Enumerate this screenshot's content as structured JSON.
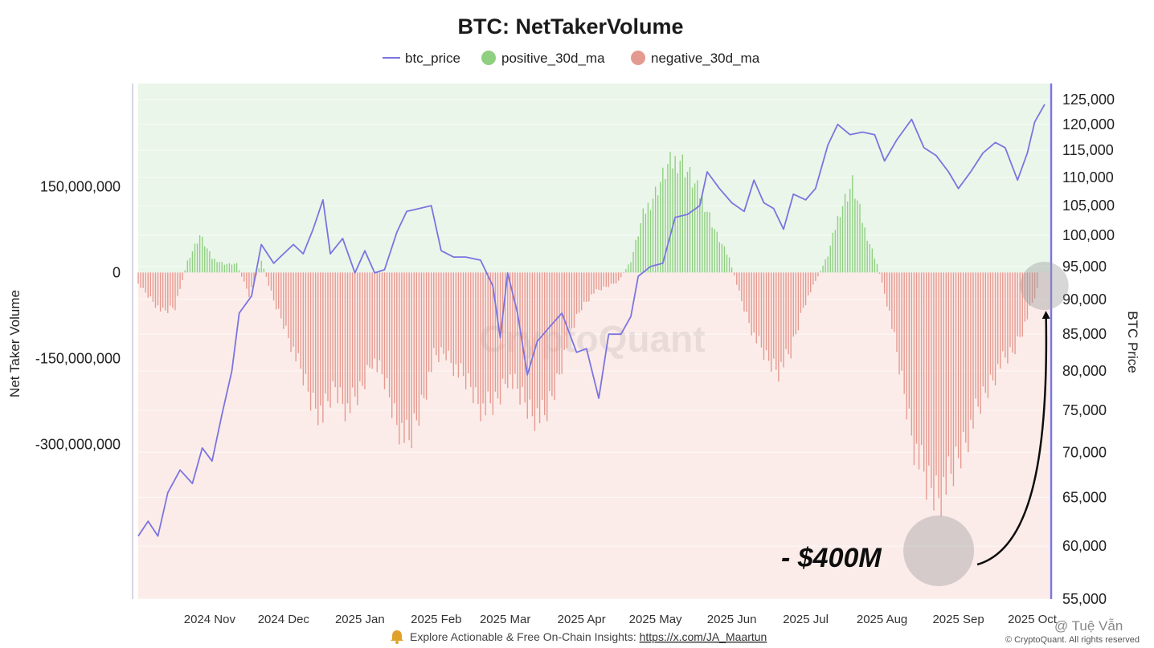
{
  "colors": {
    "price_line": "#7b74e0",
    "positive": "#8fcf80",
    "negative": "#e59a90",
    "positive_bg": "#eaf6ea",
    "negative_bg": "#fbece9"
  },
  "footer": {
    "icon": "bell-icon",
    "text": "Explore Actionable & Free On-Chain Insights: ",
    "link": "https://x.com/JA_Maartun"
  },
  "credit": "© CryptoQuant. All rights reserved",
  "handle": "@ Tuệ Vẫn",
  "watermark": "CryptoQuant",
  "chart_data": {
    "type": "bar",
    "title": "BTC: NetTakerVolume",
    "ylabel": "Net Taker Volume",
    "y2label": "BTC Price",
    "legend": [
      "btc_price",
      "positive_30d_ma",
      "negative_30d_ma"
    ],
    "legend_placement": "top-center",
    "ylim": [
      -570000000,
      330000000
    ],
    "y2lim": [
      55000,
      125000
    ],
    "y2_scale": "log",
    "y_ticks": [
      {
        "v": 150000000,
        "label": "150,000,000"
      },
      {
        "v": 0,
        "label": "0"
      },
      {
        "v": -150000000,
        "label": "-150,000,000"
      },
      {
        "v": -300000000,
        "label": "-300,000,000"
      }
    ],
    "y2_ticks": [
      {
        "v": 125000,
        "label": "125,000"
      },
      {
        "v": 120000,
        "label": "120,000"
      },
      {
        "v": 115000,
        "label": "115,000"
      },
      {
        "v": 110000,
        "label": "110,000"
      },
      {
        "v": 105000,
        "label": "105,000"
      },
      {
        "v": 100000,
        "label": "100,000"
      },
      {
        "v": 95000,
        "label": "95,000"
      },
      {
        "v": 90000,
        "label": "90,000"
      },
      {
        "v": 85000,
        "label": "85,000"
      },
      {
        "v": 80000,
        "label": "80,000"
      },
      {
        "v": 75000,
        "label": "75,000"
      },
      {
        "v": 70000,
        "label": "70,000"
      },
      {
        "v": 65000,
        "label": "65,000"
      },
      {
        "v": 60000,
        "label": "60,000"
      },
      {
        "v": 55000,
        "label": "55,000"
      }
    ],
    "x_range": [
      "2024-10-03",
      "2025-10-08"
    ],
    "x_ticks": [
      {
        "date": "2024-11-01",
        "label": "2024 Nov"
      },
      {
        "date": "2024-12-01",
        "label": "2024 Dec"
      },
      {
        "date": "2025-01-01",
        "label": "2025 Jan"
      },
      {
        "date": "2025-02-01",
        "label": "2025 Feb"
      },
      {
        "date": "2025-03-01",
        "label": "2025 Mar"
      },
      {
        "date": "2025-04-01",
        "label": "2025 Apr"
      },
      {
        "date": "2025-05-01",
        "label": "2025 May"
      },
      {
        "date": "2025-06-01",
        "label": "2025 Jun"
      },
      {
        "date": "2025-07-01",
        "label": "2025 Jul"
      },
      {
        "date": "2025-08-01",
        "label": "2025 Aug"
      },
      {
        "date": "2025-09-01",
        "label": "2025 Sep"
      },
      {
        "date": "2025-10-01",
        "label": "2025 Oct"
      }
    ],
    "net_taker_volume_30d_ma": [
      [
        "2024-10-03",
        -20000000
      ],
      [
        "2024-10-08",
        -45000000
      ],
      [
        "2024-10-13",
        -70000000
      ],
      [
        "2024-10-18",
        -60000000
      ],
      [
        "2024-10-23",
        20000000
      ],
      [
        "2024-10-28",
        65000000
      ],
      [
        "2024-11-02",
        25000000
      ],
      [
        "2024-11-07",
        15000000
      ],
      [
        "2024-11-12",
        15000000
      ],
      [
        "2024-11-17",
        -40000000
      ],
      [
        "2024-11-22",
        20000000
      ],
      [
        "2024-11-27",
        -50000000
      ],
      [
        "2024-12-02",
        -100000000
      ],
      [
        "2024-12-07",
        -160000000
      ],
      [
        "2024-12-12",
        -220000000
      ],
      [
        "2024-12-17",
        -250000000
      ],
      [
        "2024-12-22",
        -200000000
      ],
      [
        "2024-12-27",
        -240000000
      ],
      [
        "2025-01-01",
        -210000000
      ],
      [
        "2025-01-06",
        -150000000
      ],
      [
        "2025-01-11",
        -190000000
      ],
      [
        "2025-01-16",
        -260000000
      ],
      [
        "2025-01-21",
        -300000000
      ],
      [
        "2025-01-26",
        -230000000
      ],
      [
        "2025-01-31",
        -150000000
      ],
      [
        "2025-02-05",
        -140000000
      ],
      [
        "2025-02-10",
        -175000000
      ],
      [
        "2025-02-15",
        -200000000
      ],
      [
        "2025-02-20",
        -240000000
      ],
      [
        "2025-02-25",
        -230000000
      ],
      [
        "2025-03-02",
        -180000000
      ],
      [
        "2025-03-07",
        -215000000
      ],
      [
        "2025-03-12",
        -245000000
      ],
      [
        "2025-03-17",
        -255000000
      ],
      [
        "2025-03-22",
        -190000000
      ],
      [
        "2025-03-27",
        -110000000
      ],
      [
        "2025-04-01",
        -60000000
      ],
      [
        "2025-04-06",
        -35000000
      ],
      [
        "2025-04-11",
        -25000000
      ],
      [
        "2025-04-16",
        -15000000
      ],
      [
        "2025-04-21",
        20000000
      ],
      [
        "2025-04-26",
        100000000
      ],
      [
        "2025-05-01",
        140000000
      ],
      [
        "2025-05-06",
        185000000
      ],
      [
        "2025-05-11",
        200000000
      ],
      [
        "2025-05-16",
        160000000
      ],
      [
        "2025-05-21",
        120000000
      ],
      [
        "2025-05-26",
        65000000
      ],
      [
        "2025-05-31",
        25000000
      ],
      [
        "2025-06-05",
        -50000000
      ],
      [
        "2025-06-10",
        -110000000
      ],
      [
        "2025-06-15",
        -150000000
      ],
      [
        "2025-06-20",
        -170000000
      ],
      [
        "2025-06-25",
        -140000000
      ],
      [
        "2025-06-30",
        -60000000
      ],
      [
        "2025-07-05",
        -15000000
      ],
      [
        "2025-07-10",
        30000000
      ],
      [
        "2025-07-15",
        110000000
      ],
      [
        "2025-07-20",
        155000000
      ],
      [
        "2025-07-25",
        75000000
      ],
      [
        "2025-07-30",
        15000000
      ],
      [
        "2025-08-04",
        -70000000
      ],
      [
        "2025-08-09",
        -190000000
      ],
      [
        "2025-08-14",
        -300000000
      ],
      [
        "2025-08-19",
        -370000000
      ],
      [
        "2025-08-24",
        -385000000
      ],
      [
        "2025-08-29",
        -360000000
      ],
      [
        "2025-09-03",
        -300000000
      ],
      [
        "2025-09-08",
        -250000000
      ],
      [
        "2025-09-13",
        -200000000
      ],
      [
        "2025-09-18",
        -160000000
      ],
      [
        "2025-09-23",
        -140000000
      ],
      [
        "2025-09-28",
        -90000000
      ],
      [
        "2025-10-03",
        -30000000
      ]
    ],
    "btc_price": [
      [
        "2024-10-03",
        61000
      ],
      [
        "2024-10-07",
        62500
      ],
      [
        "2024-10-11",
        61000
      ],
      [
        "2024-10-15",
        65500
      ],
      [
        "2024-10-20",
        68000
      ],
      [
        "2024-10-25",
        66500
      ],
      [
        "2024-10-29",
        70500
      ],
      [
        "2024-11-02",
        69000
      ],
      [
        "2024-11-06",
        74500
      ],
      [
        "2024-11-10",
        80000
      ],
      [
        "2024-11-13",
        88000
      ],
      [
        "2024-11-18",
        90500
      ],
      [
        "2024-11-22",
        98500
      ],
      [
        "2024-11-27",
        95500
      ],
      [
        "2024-12-01",
        97000
      ],
      [
        "2024-12-05",
        98500
      ],
      [
        "2024-12-09",
        97000
      ],
      [
        "2024-12-13",
        101000
      ],
      [
        "2024-12-17",
        106000
      ],
      [
        "2024-12-20",
        97000
      ],
      [
        "2024-12-25",
        99500
      ],
      [
        "2024-12-30",
        94000
      ],
      [
        "2025-01-03",
        97500
      ],
      [
        "2025-01-07",
        94000
      ],
      [
        "2025-01-11",
        94500
      ],
      [
        "2025-01-16",
        100500
      ],
      [
        "2025-01-20",
        104000
      ],
      [
        "2025-01-25",
        104500
      ],
      [
        "2025-01-30",
        105000
      ],
      [
        "2025-02-03",
        97500
      ],
      [
        "2025-02-08",
        96500
      ],
      [
        "2025-02-13",
        96500
      ],
      [
        "2025-02-19",
        96000
      ],
      [
        "2025-02-24",
        92000
      ],
      [
        "2025-02-27",
        84500
      ],
      [
        "2025-03-02",
        94000
      ],
      [
        "2025-03-06",
        88000
      ],
      [
        "2025-03-10",
        79500
      ],
      [
        "2025-03-14",
        84000
      ],
      [
        "2025-03-19",
        86000
      ],
      [
        "2025-03-24",
        88000
      ],
      [
        "2025-03-30",
        82500
      ],
      [
        "2025-04-03",
        83000
      ],
      [
        "2025-04-08",
        76500
      ],
      [
        "2025-04-12",
        85000
      ],
      [
        "2025-04-17",
        85000
      ],
      [
        "2025-04-21",
        87500
      ],
      [
        "2025-04-24",
        93500
      ],
      [
        "2025-04-29",
        95000
      ],
      [
        "2025-05-04",
        95500
      ],
      [
        "2025-05-09",
        103000
      ],
      [
        "2025-05-14",
        103500
      ],
      [
        "2025-05-19",
        105000
      ],
      [
        "2025-05-22",
        111000
      ],
      [
        "2025-05-27",
        108000
      ],
      [
        "2025-06-01",
        105500
      ],
      [
        "2025-06-06",
        104000
      ],
      [
        "2025-06-10",
        109500
      ],
      [
        "2025-06-14",
        105500
      ],
      [
        "2025-06-18",
        104500
      ],
      [
        "2025-06-22",
        101000
      ],
      [
        "2025-06-26",
        107000
      ],
      [
        "2025-07-01",
        106000
      ],
      [
        "2025-07-05",
        108000
      ],
      [
        "2025-07-10",
        116000
      ],
      [
        "2025-07-14",
        120000
      ],
      [
        "2025-07-19",
        118000
      ],
      [
        "2025-07-24",
        118500
      ],
      [
        "2025-07-29",
        118000
      ],
      [
        "2025-08-02",
        113000
      ],
      [
        "2025-08-07",
        117000
      ],
      [
        "2025-08-13",
        121000
      ],
      [
        "2025-08-18",
        115500
      ],
      [
        "2025-08-23",
        114000
      ],
      [
        "2025-08-28",
        111000
      ],
      [
        "2025-09-01",
        108000
      ],
      [
        "2025-09-06",
        111000
      ],
      [
        "2025-09-11",
        114500
      ],
      [
        "2025-09-16",
        116500
      ],
      [
        "2025-09-20",
        115500
      ],
      [
        "2025-09-25",
        109500
      ],
      [
        "2025-09-29",
        114500
      ],
      [
        "2025-10-02",
        120500
      ],
      [
        "2025-10-06",
        124000
      ]
    ],
    "annotation": {
      "text": "- $400M",
      "target_date": "2025-08-24",
      "arrow_to_date": "2025-10-02"
    }
  }
}
